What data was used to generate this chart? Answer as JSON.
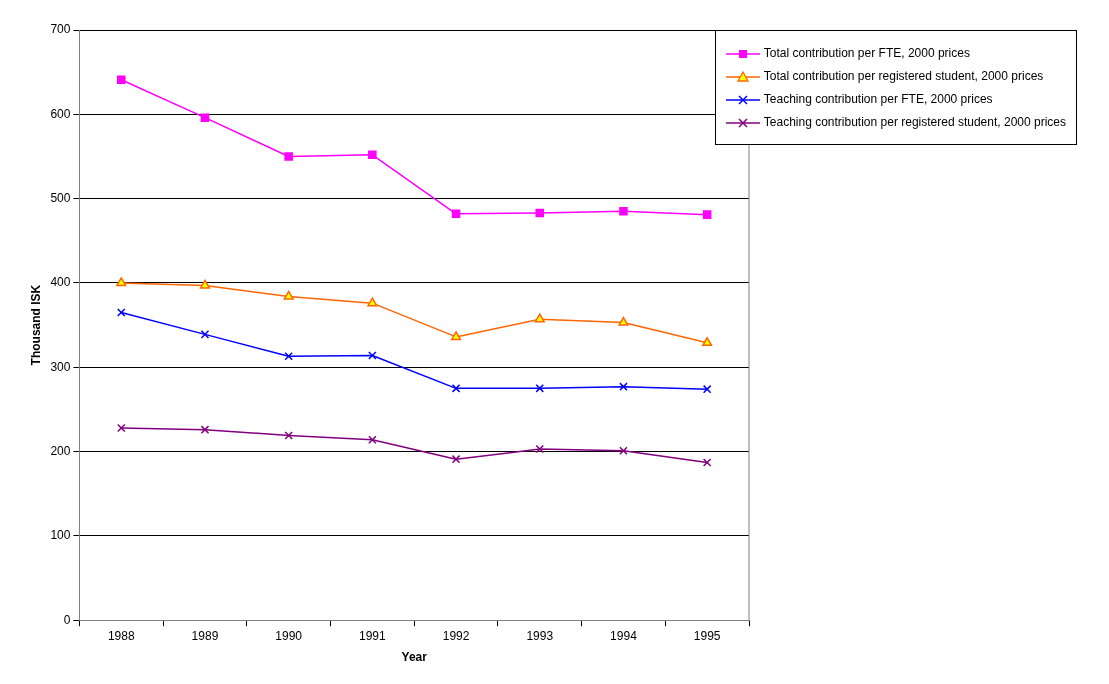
{
  "chart_data": {
    "type": "line",
    "xlabel": "Year",
    "ylabel": "Thousand ISK",
    "categories": [
      "1988",
      "1989",
      "1990",
      "1991",
      "1992",
      "1993",
      "1994",
      "1995"
    ],
    "ylim": [
      0,
      700
    ],
    "yticks": [
      0,
      100,
      200,
      300,
      400,
      500,
      600,
      700
    ],
    "grid": "y",
    "legend": "top right",
    "line_style": "solid",
    "series": [
      {
        "name": "Total contribution per FTE, 2000 prices",
        "color": "#ff00ff",
        "marker": "square",
        "values": [
          641,
          596,
          550,
          552,
          482,
          483,
          485,
          481
        ]
      },
      {
        "name": "Total contribution per registered student, 2000 prices",
        "color": "#ff6600",
        "marker": "triangle",
        "values": [
          400,
          397,
          384,
          376,
          336,
          357,
          353,
          329
        ]
      },
      {
        "name": "Teaching contribution per FTE, 2000 prices",
        "color": "#0000ff",
        "marker": "cross",
        "values": [
          365,
          339,
          313,
          314,
          275,
          275,
          277,
          274
        ]
      },
      {
        "name": "Teaching contribution per registered student, 2000 prices",
        "color": "#800080",
        "marker": "cross",
        "values": [
          228,
          226,
          219,
          214,
          191,
          203,
          201,
          187
        ]
      }
    ]
  }
}
